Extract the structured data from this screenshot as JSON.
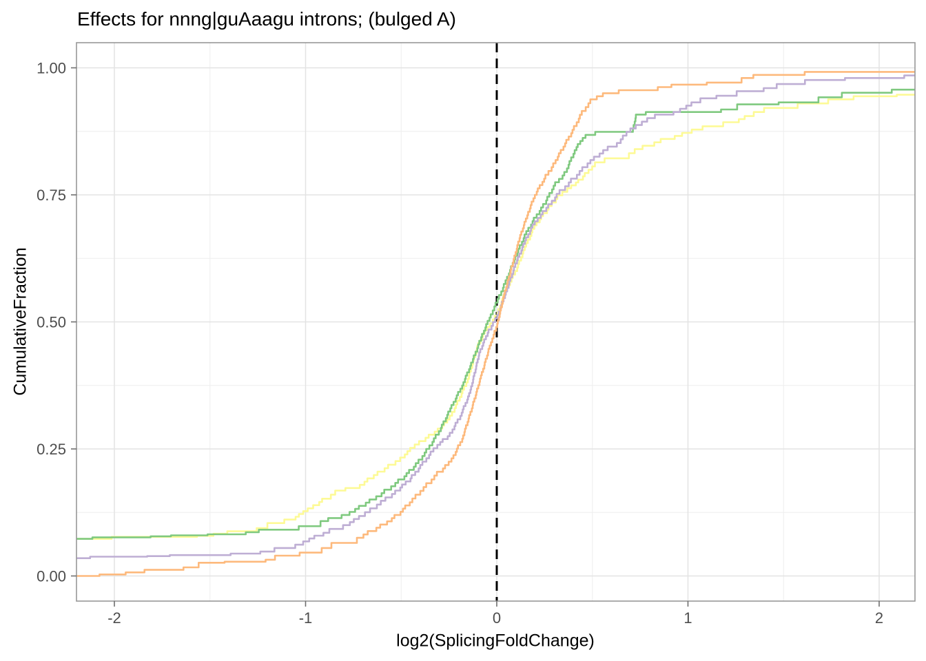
{
  "title": "Effects for nnng|guAaagu introns; (bulged A)",
  "chart_data": {
    "type": "line",
    "subtype": "ecdf_step",
    "title": "Effects for nnng|guAaagu introns; (bulged A)",
    "xlabel": "log2(SplicingFoldChange)",
    "ylabel": "CumulativeFraction",
    "xlim": [
      -2.2,
      2.19
    ],
    "ylim": [
      0,
      1
    ],
    "x_ticks": [
      -2,
      -1,
      0,
      1,
      2
    ],
    "x_tick_labels": [
      "-2",
      "-1",
      "0",
      "1",
      "2"
    ],
    "y_ticks": [
      0,
      0.25,
      0.5,
      0.75,
      1.0
    ],
    "y_tick_labels": [
      "0.00",
      "0.25",
      "0.50",
      "0.75",
      "1.00"
    ],
    "x_minor_ticks": [
      -1.5,
      -0.5,
      0.5,
      1.5
    ],
    "y_minor_ticks": [
      0.125,
      0.375,
      0.625,
      0.875
    ],
    "grid": true,
    "legend": "none",
    "vline": {
      "x": 0,
      "style": "dashed",
      "color": "#000000"
    },
    "panel_border_color": "#979797",
    "grid_major_color": "#e3e3e3",
    "grid_minor_color": "#eeeeee",
    "tick_color": "#6e6e6e",
    "tick_label_color": "#4d4d4d",
    "series": [
      {
        "name": "yellow",
        "color": "#FDFA96",
        "points": [
          [
            -2.2,
            0.073
          ],
          [
            -1.67,
            0.077
          ],
          [
            -1.55,
            0.079
          ],
          [
            -1.45,
            0.083
          ],
          [
            -1.35,
            0.088
          ],
          [
            -1.25,
            0.094
          ],
          [
            -1.15,
            0.104
          ],
          [
            -1.08,
            0.111
          ],
          [
            -1.02,
            0.122
          ],
          [
            -0.98,
            0.133
          ],
          [
            -0.9,
            0.152
          ],
          [
            -0.82,
            0.168
          ],
          [
            -0.74,
            0.173
          ],
          [
            -0.66,
            0.192
          ],
          [
            -0.58,
            0.212
          ],
          [
            -0.5,
            0.233
          ],
          [
            -0.44,
            0.252
          ],
          [
            -0.37,
            0.272
          ],
          [
            -0.3,
            0.29
          ],
          [
            -0.25,
            0.308
          ],
          [
            -0.2,
            0.345
          ],
          [
            -0.15,
            0.388
          ],
          [
            -0.1,
            0.452
          ],
          [
            -0.05,
            0.49
          ],
          [
            0.0,
            0.512
          ],
          [
            0.05,
            0.565
          ],
          [
            0.1,
            0.6
          ],
          [
            0.15,
            0.648
          ],
          [
            0.2,
            0.69
          ],
          [
            0.25,
            0.714
          ],
          [
            0.31,
            0.742
          ],
          [
            0.37,
            0.763
          ],
          [
            0.44,
            0.78
          ],
          [
            0.5,
            0.806
          ],
          [
            0.57,
            0.822
          ],
          [
            0.7,
            0.832
          ],
          [
            0.74,
            0.84
          ],
          [
            0.87,
            0.86
          ],
          [
            1.0,
            0.872
          ],
          [
            1.1,
            0.885
          ],
          [
            1.22,
            0.893
          ],
          [
            1.33,
            0.905
          ],
          [
            1.41,
            0.921
          ],
          [
            1.6,
            0.93
          ],
          [
            1.8,
            0.938
          ],
          [
            1.96,
            0.944
          ],
          [
            2.1,
            0.947
          ],
          [
            2.19,
            0.947
          ]
        ]
      },
      {
        "name": "green",
        "color": "#7FC97F",
        "points": [
          [
            -2.2,
            0.073
          ],
          [
            -2.0,
            0.076
          ],
          [
            -1.8,
            0.078
          ],
          [
            -1.6,
            0.08
          ],
          [
            -1.45,
            0.082
          ],
          [
            -1.3,
            0.086
          ],
          [
            -1.15,
            0.091
          ],
          [
            -1.0,
            0.098
          ],
          [
            -0.9,
            0.108
          ],
          [
            -0.8,
            0.12
          ],
          [
            -0.7,
            0.138
          ],
          [
            -0.6,
            0.163
          ],
          [
            -0.5,
            0.19
          ],
          [
            -0.43,
            0.215
          ],
          [
            -0.36,
            0.25
          ],
          [
            -0.3,
            0.285
          ],
          [
            -0.24,
            0.33
          ],
          [
            -0.18,
            0.375
          ],
          [
            -0.13,
            0.42
          ],
          [
            -0.08,
            0.47
          ],
          [
            -0.03,
            0.515
          ],
          [
            0.0,
            0.538
          ],
          [
            0.05,
            0.582
          ],
          [
            0.1,
            0.63
          ],
          [
            0.15,
            0.672
          ],
          [
            0.2,
            0.705
          ],
          [
            0.25,
            0.732
          ],
          [
            0.3,
            0.768
          ],
          [
            0.36,
            0.795
          ],
          [
            0.41,
            0.838
          ],
          [
            0.45,
            0.862
          ],
          [
            0.52,
            0.874
          ],
          [
            0.71,
            0.874
          ],
          [
            0.73,
            0.908
          ],
          [
            0.82,
            0.913
          ],
          [
            1.2,
            0.918
          ],
          [
            1.35,
            0.928
          ],
          [
            1.52,
            0.932
          ],
          [
            1.72,
            0.942
          ],
          [
            1.96,
            0.951
          ],
          [
            2.08,
            0.957
          ],
          [
            2.19,
            0.957
          ]
        ]
      },
      {
        "name": "purple",
        "color": "#BEAED4",
        "points": [
          [
            -2.2,
            0.035
          ],
          [
            -2.08,
            0.038
          ],
          [
            -1.8,
            0.039
          ],
          [
            -1.55,
            0.041
          ],
          [
            -1.35,
            0.044
          ],
          [
            -1.2,
            0.048
          ],
          [
            -1.1,
            0.055
          ],
          [
            -1.0,
            0.068
          ],
          [
            -0.9,
            0.085
          ],
          [
            -0.8,
            0.1
          ],
          [
            -0.7,
            0.118
          ],
          [
            -0.6,
            0.148
          ],
          [
            -0.52,
            0.168
          ],
          [
            -0.45,
            0.192
          ],
          [
            -0.38,
            0.225
          ],
          [
            -0.31,
            0.258
          ],
          [
            -0.25,
            0.275
          ],
          [
            -0.19,
            0.315
          ],
          [
            -0.14,
            0.36
          ],
          [
            -0.09,
            0.44
          ],
          [
            -0.04,
            0.485
          ],
          [
            0.0,
            0.507
          ],
          [
            0.05,
            0.56
          ],
          [
            0.1,
            0.615
          ],
          [
            0.15,
            0.66
          ],
          [
            0.2,
            0.698
          ],
          [
            0.25,
            0.718
          ],
          [
            0.32,
            0.752
          ],
          [
            0.4,
            0.782
          ],
          [
            0.48,
            0.812
          ],
          [
            0.56,
            0.838
          ],
          [
            0.63,
            0.852
          ],
          [
            0.69,
            0.874
          ],
          [
            0.76,
            0.894
          ],
          [
            0.83,
            0.908
          ],
          [
            0.95,
            0.913
          ],
          [
            1.02,
            0.932
          ],
          [
            1.07,
            0.94
          ],
          [
            1.2,
            0.945
          ],
          [
            1.32,
            0.954
          ],
          [
            1.4,
            0.96
          ],
          [
            1.69,
            0.976
          ],
          [
            1.9,
            0.98
          ],
          [
            2.16,
            0.985
          ],
          [
            2.19,
            0.985
          ]
        ]
      },
      {
        "name": "orange",
        "color": "#FDB97C",
        "points": [
          [
            -2.2,
            0.0
          ],
          [
            -2.05,
            0.003
          ],
          [
            -1.9,
            0.007
          ],
          [
            -1.75,
            0.012
          ],
          [
            -1.63,
            0.017
          ],
          [
            -1.5,
            0.026
          ],
          [
            -1.35,
            0.028
          ],
          [
            -1.2,
            0.032
          ],
          [
            -1.1,
            0.04
          ],
          [
            -1.0,
            0.046
          ],
          [
            -0.9,
            0.055
          ],
          [
            -0.8,
            0.065
          ],
          [
            -0.72,
            0.075
          ],
          [
            -0.62,
            0.095
          ],
          [
            -0.52,
            0.12
          ],
          [
            -0.45,
            0.145
          ],
          [
            -0.38,
            0.175
          ],
          [
            -0.3,
            0.205
          ],
          [
            -0.24,
            0.225
          ],
          [
            -0.18,
            0.27
          ],
          [
            -0.13,
            0.33
          ],
          [
            -0.08,
            0.395
          ],
          [
            -0.03,
            0.46
          ],
          [
            0.0,
            0.49
          ],
          [
            0.04,
            0.555
          ],
          [
            0.08,
            0.61
          ],
          [
            0.12,
            0.665
          ],
          [
            0.16,
            0.71
          ],
          [
            0.2,
            0.75
          ],
          [
            0.25,
            0.782
          ],
          [
            0.3,
            0.812
          ],
          [
            0.35,
            0.845
          ],
          [
            0.4,
            0.878
          ],
          [
            0.45,
            0.915
          ],
          [
            0.5,
            0.938
          ],
          [
            0.58,
            0.95
          ],
          [
            0.7,
            0.956
          ],
          [
            0.85,
            0.962
          ],
          [
            1.0,
            0.967
          ],
          [
            1.15,
            0.971
          ],
          [
            1.3,
            0.98
          ],
          [
            1.42,
            0.986
          ],
          [
            1.65,
            0.992
          ],
          [
            2.19,
            0.992
          ]
        ]
      }
    ]
  }
}
